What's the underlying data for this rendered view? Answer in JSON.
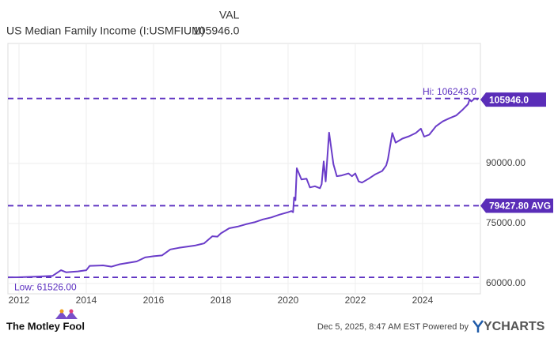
{
  "chart_data": {
    "type": "line",
    "title": "US Median Family Income (I:USMFIUM)",
    "value_header": "VAL",
    "x": [
      2011.67,
      2012.0,
      2012.5,
      2013.0,
      2013.25,
      2013.4,
      2013.75,
      2014.0,
      2014.1,
      2014.5,
      2014.75,
      2015.0,
      2015.5,
      2015.75,
      2016.0,
      2016.25,
      2016.5,
      2016.75,
      2017.0,
      2017.25,
      2017.5,
      2017.75,
      2017.9,
      2018.0,
      2018.25,
      2018.5,
      2018.75,
      2019.0,
      2019.25,
      2019.5,
      2019.75,
      2020.0,
      2020.1,
      2020.15,
      2020.18,
      2020.22,
      2020.26,
      2020.4,
      2020.55,
      2020.65,
      2020.8,
      2020.95,
      2021.0,
      2021.06,
      2021.12,
      2021.22,
      2021.35,
      2021.45,
      2021.6,
      2021.8,
      2021.9,
      2022.0,
      2022.1,
      2022.2,
      2022.4,
      2022.6,
      2022.8,
      2022.92,
      2022.97,
      2023.1,
      2023.2,
      2023.4,
      2023.6,
      2023.8,
      2023.95,
      2024.05,
      2024.2,
      2024.4,
      2024.6,
      2024.8,
      2025.0,
      2025.2,
      2025.35,
      2025.4,
      2025.45,
      2025.55,
      2025.65
    ],
    "series": [
      {
        "name": "US Median Family Income",
        "color": "#6a3cc9",
        "values": [
          61526,
          61550,
          61700,
          61900,
          63300,
          62800,
          63000,
          63300,
          64400,
          64500,
          64200,
          64800,
          65500,
          66500,
          66800,
          67000,
          68500,
          68900,
          69200,
          69500,
          70000,
          71800,
          71700,
          72500,
          73800,
          74200,
          74800,
          75300,
          76000,
          76500,
          77200,
          77800,
          78100,
          77800,
          81500,
          80800,
          88800,
          86000,
          86200,
          84000,
          84300,
          83800,
          84800,
          90500,
          85500,
          97700,
          89800,
          86800,
          87000,
          87500,
          86800,
          87500,
          85500,
          85200,
          86200,
          87300,
          88100,
          89500,
          91000,
          97600,
          95200,
          96200,
          96800,
          97600,
          98700,
          96700,
          97200,
          99300,
          100500,
          101300,
          102000,
          103500,
          104800,
          106000,
          105500,
          106243,
          105946
        ]
      }
    ],
    "last_value": {
      "value": 105946,
      "label": "105946.0"
    },
    "reference_lines": [
      {
        "value": 106243,
        "label": "Hi: 106243.0"
      },
      {
        "value": 79427.8,
        "label": "79427.80 AVG"
      },
      {
        "value": 61526,
        "label": "Low: 61526.00"
      }
    ],
    "xlim": [
      2011.67,
      2025.72
    ],
    "xticks": [
      2012,
      2014,
      2016,
      2018,
      2020,
      2022,
      2024
    ],
    "ylim": [
      57400,
      120000
    ],
    "yticks": [
      {
        "value": 60000,
        "label": "60000.00"
      },
      {
        "value": 75000,
        "label": "75000.00"
      },
      {
        "value": 90000,
        "label": "90000.00"
      }
    ],
    "grid": true,
    "reference_color": "#5b2fc0",
    "footer": {
      "brand": "The Motley Fool",
      "timestamp": "Dec 5, 2025, 8:47 AM EST  Powered by",
      "provider": "YCHARTS"
    }
  }
}
